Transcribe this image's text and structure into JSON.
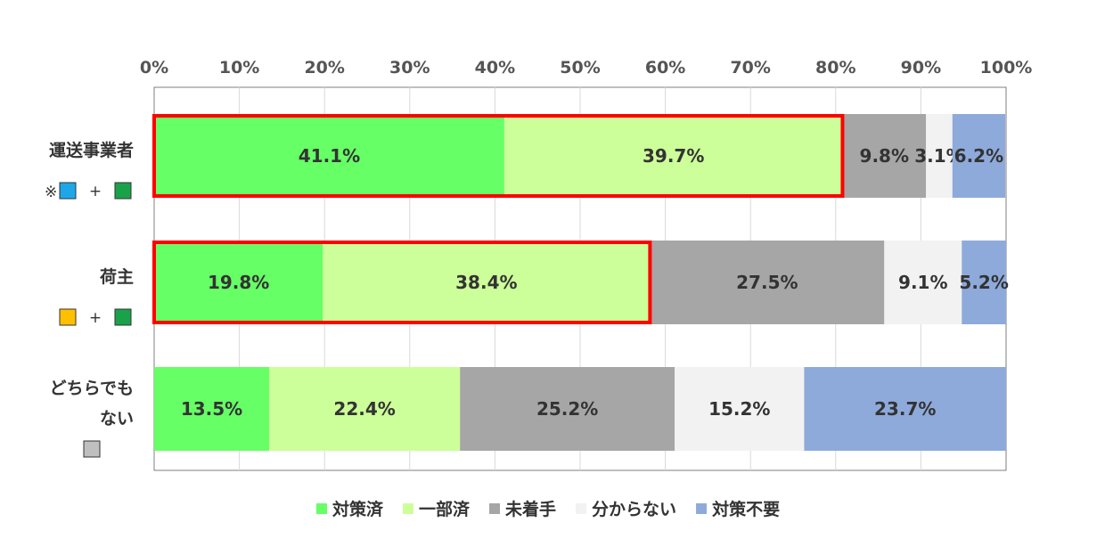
{
  "chart_data": {
    "type": "bar",
    "orientation": "horizontal",
    "stacked": true,
    "percent_axis": {
      "ticks": [
        "0%",
        "10%",
        "20%",
        "30%",
        "40%",
        "50%",
        "60%",
        "70%",
        "80%",
        "90%",
        "100%"
      ],
      "range": [
        0,
        100
      ],
      "position": "top"
    },
    "grid": true,
    "categories": [
      {
        "label_lines": [
          "運送事業者"
        ],
        "note_prefix": "※",
        "note_plus": "+",
        "note_colors": [
          "#1ea7e8",
          "#1aa24a"
        ]
      },
      {
        "label_lines": [
          "荷主"
        ],
        "note_prefix": "",
        "note_plus": "+",
        "note_colors": [
          "#ffc000",
          "#1aa24a"
        ]
      },
      {
        "label_lines": [
          "どちらでも",
          "ない"
        ],
        "note_prefix": "",
        "note_plus": "",
        "note_colors": [
          "#bfbfbf"
        ]
      }
    ],
    "series": [
      {
        "name": "対策済",
        "color": "#66ff66",
        "values": [
          41.1,
          19.8,
          13.5
        ],
        "labels": [
          "41.1%",
          "19.8%",
          "13.5%"
        ]
      },
      {
        "name": "一部済",
        "color": "#ccff99",
        "values": [
          39.7,
          38.4,
          22.4
        ],
        "labels": [
          "39.7%",
          "38.4%",
          "22.4%"
        ]
      },
      {
        "name": "未着手",
        "color": "#a6a6a6",
        "values": [
          9.8,
          27.5,
          25.2
        ],
        "labels": [
          "9.8%",
          "27.5%",
          "25.2%"
        ]
      },
      {
        "name": "分からない",
        "color": "#f2f2f2",
        "values": [
          3.1,
          9.1,
          15.2
        ],
        "labels": [
          "3.1%",
          "9.1%",
          "15.2%"
        ]
      },
      {
        "name": "対策不要",
        "color": "#8eaadb",
        "values": [
          6.2,
          5.2,
          23.7
        ],
        "labels": [
          "6.2%",
          "5.2%",
          "23.7%"
        ]
      }
    ],
    "highlights": [
      {
        "category_index": 0,
        "through_series": 1,
        "color": "#ff0000"
      },
      {
        "category_index": 1,
        "through_series": 1,
        "color": "#ff0000"
      }
    ],
    "legend": {
      "placement": "bottom"
    }
  }
}
